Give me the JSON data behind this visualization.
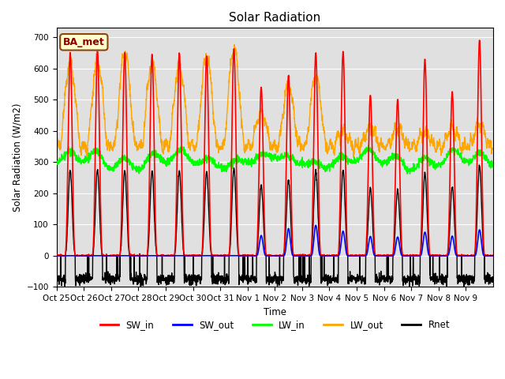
{
  "title": "Solar Radiation",
  "ylabel": "Solar Radiation (W/m2)",
  "xlabel": "Time",
  "ylim": [
    -100,
    730
  ],
  "yticks": [
    -100,
    0,
    100,
    200,
    300,
    400,
    500,
    600,
    700
  ],
  "background_color": "#e0e0e0",
  "legend_label": "BA_met",
  "series": {
    "SW_in": {
      "color": "red",
      "lw": 1.2
    },
    "SW_out": {
      "color": "blue",
      "lw": 1.2
    },
    "LW_in": {
      "color": "#00ff00",
      "lw": 1.0
    },
    "LW_out": {
      "color": "orange",
      "lw": 1.0
    },
    "Rnet": {
      "color": "black",
      "lw": 1.0
    }
  },
  "xtick_labels": [
    "Oct 25",
    "Oct 26",
    "Oct 27",
    "Oct 28",
    "Oct 29",
    "Oct 30",
    "Oct 31",
    "Nov 1",
    "Nov 2",
    "Nov 3",
    "Nov 4",
    "Nov 5",
    "Nov 6",
    "Nov 7",
    "Nov 8",
    "Nov 9"
  ],
  "n_days": 16,
  "pts_per_day": 144,
  "SW_in_peaks": [
    650,
    655,
    650,
    645,
    650,
    640,
    665,
    540,
    580,
    650,
    655,
    515,
    500,
    630,
    525,
    690
  ],
  "LW_out_peaks": [
    615,
    625,
    655,
    615,
    610,
    640,
    665,
    460,
    545,
    575,
    400,
    410,
    405,
    395,
    410,
    420
  ],
  "LW_in_base": 295,
  "Rnet_night": -75
}
